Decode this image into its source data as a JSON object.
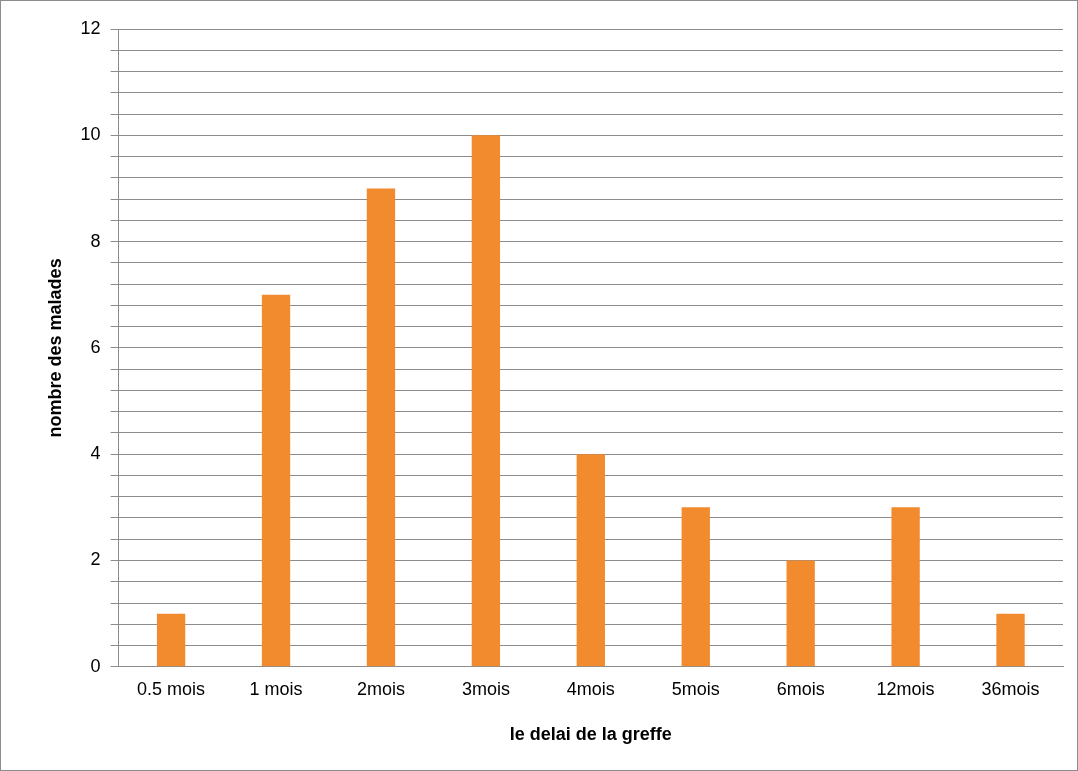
{
  "chart_data": {
    "type": "bar",
    "xlabel": "le delai de la greffe",
    "ylabel": "nombre des malades",
    "categories": [
      "0.5 mois",
      "1 mois",
      "2mois",
      "3mois",
      "4mois",
      "5mois",
      "6mois",
      "12mois",
      "36mois"
    ],
    "values": [
      1,
      7,
      9,
      10,
      4,
      3,
      2,
      3,
      1
    ],
    "color": "#f28a2e",
    "ylim": [
      0,
      12
    ],
    "yticks": [
      0,
      {
        "value": 0.4,
        "label": null
      },
      {
        "value": 0.8,
        "label": null
      },
      {
        "value": 1.2,
        "label": null
      },
      {
        "value": 1.6,
        "label": null
      },
      2,
      {
        "value": 2.4,
        "label": null
      },
      {
        "value": 2.8,
        "label": null
      },
      {
        "value": 3.2,
        "label": null
      },
      {
        "value": 3.6,
        "label": null
      },
      4,
      {
        "value": 4.4,
        "label": null
      },
      {
        "value": 4.8,
        "label": null
      },
      {
        "value": 5.2,
        "label": null
      },
      {
        "value": 5.6,
        "label": null
      },
      6,
      {
        "value": 6.4,
        "label": null
      },
      {
        "value": 6.8,
        "label": null
      },
      {
        "value": 7.2,
        "label": null
      },
      {
        "value": 7.6,
        "label": null
      },
      8,
      {
        "value": 8.4,
        "label": null
      },
      {
        "value": 8.8,
        "label": null
      },
      {
        "value": 9.2,
        "label": null
      },
      {
        "value": 9.6,
        "label": null
      },
      10,
      {
        "value": 10.4,
        "label": null
      },
      {
        "value": 10.8,
        "label": null
      },
      {
        "value": 11.2,
        "label": null
      },
      {
        "value": 11.6,
        "label": null
      },
      12
    ],
    "grid": "y",
    "legend": false
  }
}
